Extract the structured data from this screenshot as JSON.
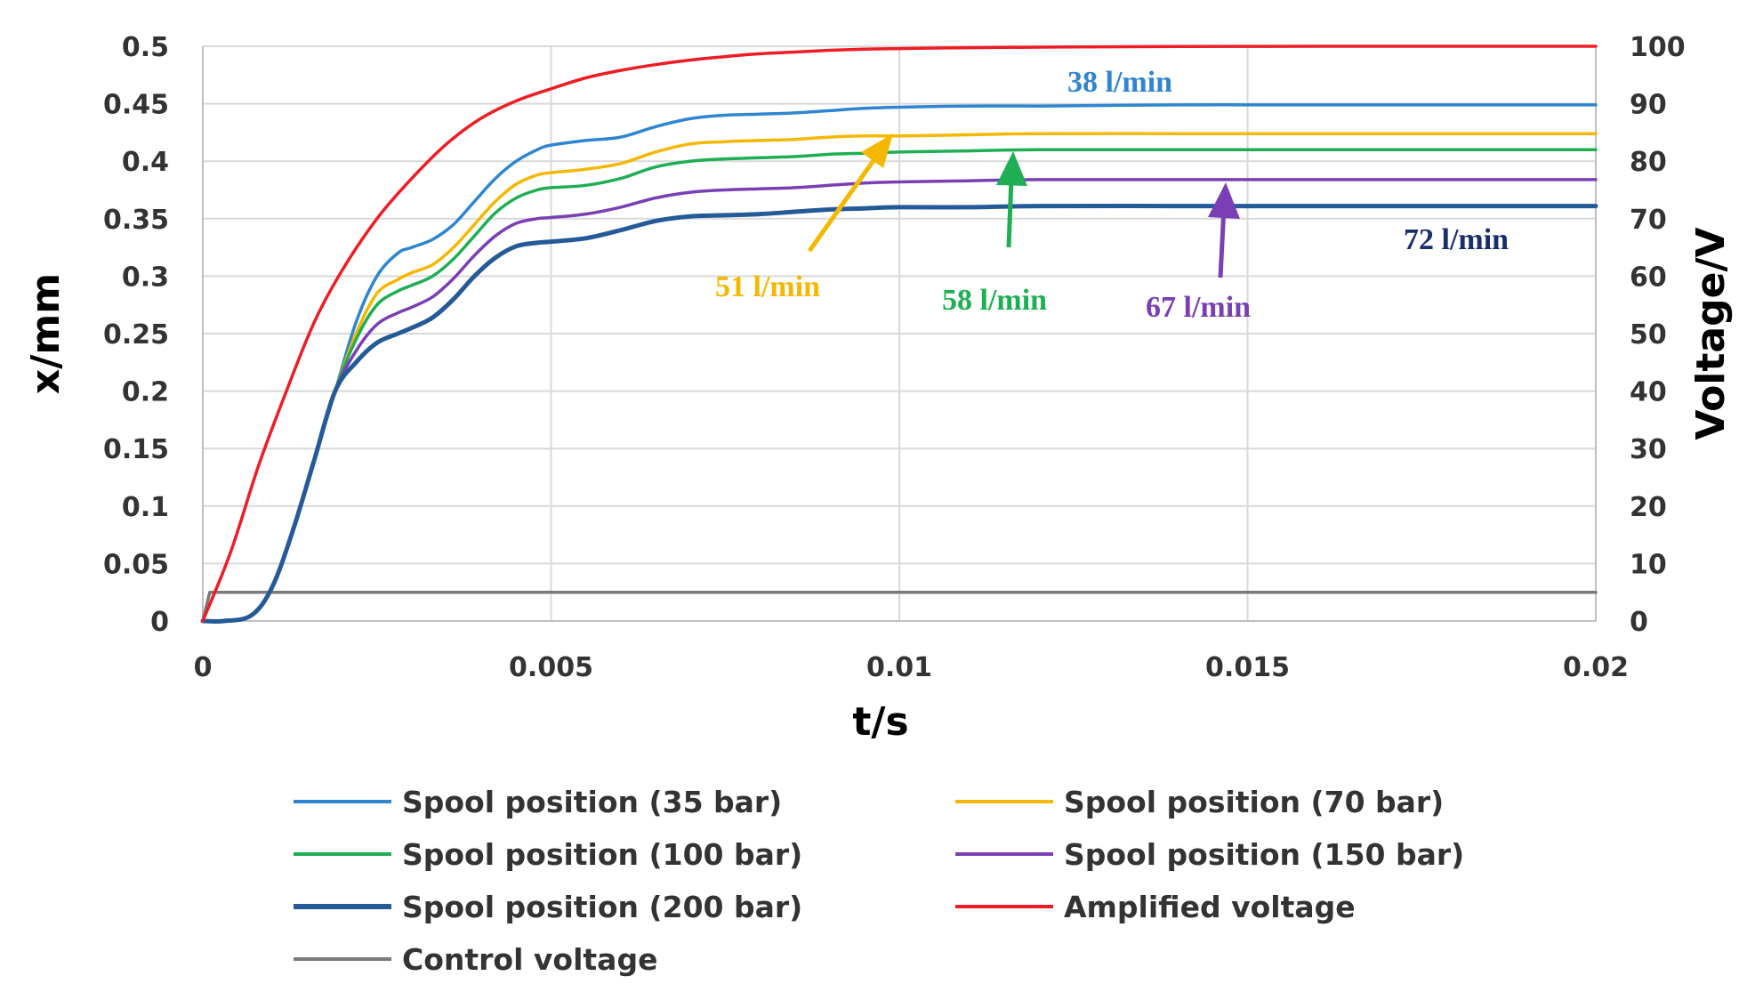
{
  "chart_data": {
    "type": "line",
    "title": "",
    "xlabel": "t/s",
    "ylabel": "x/mm",
    "y2label": "Voltage/V",
    "xlim": [
      0,
      0.02
    ],
    "ylim": [
      0,
      0.5
    ],
    "y2lim": [
      0,
      100
    ],
    "x_ticks": [
      "0",
      "0.005",
      "0.01",
      "0.015",
      "0.02"
    ],
    "y_ticks": [
      "0",
      "0.05",
      "0.1",
      "0.15",
      "0.2",
      "0.25",
      "0.3",
      "0.35",
      "0.4",
      "0.45",
      "0.5"
    ],
    "y2_ticks": [
      "0",
      "10",
      "20",
      "30",
      "40",
      "50",
      "60",
      "70",
      "80",
      "90",
      "100"
    ],
    "grid": "on",
    "legend_position": "bottom",
    "series": [
      {
        "name": "Spool position (35 bar)",
        "color": "#2e86d0",
        "axis": "left",
        "stroke": "normal",
        "x": [
          0,
          0.0003,
          0.0007,
          0.001,
          0.0013,
          0.0016,
          0.0019,
          0.0022,
          0.0025,
          0.0028,
          0.003,
          0.0033,
          0.0036,
          0.0039,
          0.0042,
          0.0045,
          0.0048,
          0.005,
          0.0055,
          0.006,
          0.0065,
          0.007,
          0.0075,
          0.008,
          0.0085,
          0.009,
          0.0095,
          0.01,
          0.011,
          0.012,
          0.014,
          0.016,
          0.018,
          0.02
        ],
        "y": [
          0,
          0,
          0.005,
          0.03,
          0.08,
          0.14,
          0.2,
          0.26,
          0.3,
          0.32,
          0.325,
          0.332,
          0.345,
          0.365,
          0.385,
          0.4,
          0.41,
          0.414,
          0.418,
          0.421,
          0.43,
          0.437,
          0.44,
          0.441,
          0.442,
          0.444,
          0.446,
          0.447,
          0.448,
          0.448,
          0.449,
          0.449,
          0.449,
          0.449
        ]
      },
      {
        "name": "Spool position (70 bar)",
        "color": "#f5b800",
        "axis": "left",
        "stroke": "normal",
        "x": [
          0,
          0.0003,
          0.0007,
          0.001,
          0.0013,
          0.0016,
          0.0019,
          0.0022,
          0.0025,
          0.0028,
          0.003,
          0.0033,
          0.0036,
          0.0039,
          0.0042,
          0.0045,
          0.0048,
          0.005,
          0.0055,
          0.006,
          0.0065,
          0.007,
          0.0075,
          0.008,
          0.0085,
          0.009,
          0.0095,
          0.01,
          0.011,
          0.012,
          0.014,
          0.016,
          0.018,
          0.02
        ],
        "y": [
          0,
          0,
          0.005,
          0.03,
          0.08,
          0.14,
          0.2,
          0.25,
          0.285,
          0.297,
          0.303,
          0.31,
          0.325,
          0.345,
          0.365,
          0.38,
          0.388,
          0.39,
          0.393,
          0.398,
          0.408,
          0.415,
          0.417,
          0.418,
          0.419,
          0.421,
          0.422,
          0.422,
          0.423,
          0.424,
          0.424,
          0.424,
          0.424,
          0.424
        ]
      },
      {
        "name": "Spool position (100 bar)",
        "color": "#1fae53",
        "axis": "left",
        "stroke": "normal",
        "x": [
          0,
          0.0003,
          0.0007,
          0.001,
          0.0013,
          0.0016,
          0.0019,
          0.0022,
          0.0025,
          0.0028,
          0.003,
          0.0033,
          0.0036,
          0.0039,
          0.0042,
          0.0045,
          0.0048,
          0.005,
          0.0055,
          0.006,
          0.0065,
          0.007,
          0.0075,
          0.008,
          0.0085,
          0.009,
          0.0095,
          0.01,
          0.011,
          0.012,
          0.014,
          0.016,
          0.018,
          0.02
        ],
        "y": [
          0,
          0,
          0.005,
          0.03,
          0.08,
          0.14,
          0.2,
          0.245,
          0.275,
          0.287,
          0.292,
          0.3,
          0.315,
          0.335,
          0.355,
          0.368,
          0.375,
          0.377,
          0.379,
          0.385,
          0.395,
          0.4,
          0.402,
          0.403,
          0.404,
          0.406,
          0.407,
          0.408,
          0.409,
          0.41,
          0.41,
          0.41,
          0.41,
          0.41
        ]
      },
      {
        "name": "Spool position (150 bar)",
        "color": "#7b3fb5",
        "axis": "left",
        "stroke": "normal",
        "x": [
          0,
          0.0003,
          0.0007,
          0.001,
          0.0013,
          0.0016,
          0.0019,
          0.0022,
          0.0025,
          0.0028,
          0.003,
          0.0033,
          0.0036,
          0.0039,
          0.0042,
          0.0045,
          0.0048,
          0.005,
          0.0055,
          0.006,
          0.0065,
          0.007,
          0.0075,
          0.008,
          0.0085,
          0.009,
          0.0095,
          0.01,
          0.011,
          0.012,
          0.014,
          0.016,
          0.018,
          0.02
        ],
        "y": [
          0,
          0,
          0.005,
          0.03,
          0.08,
          0.14,
          0.2,
          0.235,
          0.258,
          0.268,
          0.273,
          0.282,
          0.298,
          0.318,
          0.335,
          0.346,
          0.35,
          0.351,
          0.354,
          0.36,
          0.368,
          0.373,
          0.375,
          0.376,
          0.377,
          0.379,
          0.381,
          0.382,
          0.383,
          0.384,
          0.384,
          0.384,
          0.384,
          0.384
        ]
      },
      {
        "name": "Spool position (200 bar)",
        "color": "#245a97",
        "axis": "left",
        "stroke": "bold",
        "x": [
          0,
          0.0003,
          0.0007,
          0.001,
          0.0013,
          0.0016,
          0.0019,
          0.0022,
          0.0025,
          0.0028,
          0.003,
          0.0033,
          0.0036,
          0.0039,
          0.0042,
          0.0045,
          0.0048,
          0.005,
          0.0055,
          0.006,
          0.0065,
          0.007,
          0.0075,
          0.008,
          0.0085,
          0.009,
          0.0095,
          0.01,
          0.011,
          0.012,
          0.014,
          0.016,
          0.018,
          0.02
        ],
        "y": [
          0,
          0,
          0.005,
          0.03,
          0.08,
          0.14,
          0.2,
          0.225,
          0.242,
          0.25,
          0.255,
          0.264,
          0.28,
          0.3,
          0.316,
          0.326,
          0.329,
          0.33,
          0.333,
          0.34,
          0.348,
          0.352,
          0.353,
          0.354,
          0.356,
          0.358,
          0.359,
          0.36,
          0.36,
          0.361,
          0.361,
          0.361,
          0.361,
          0.361
        ]
      },
      {
        "name": "Amplified voltage",
        "color": "#ee1c24",
        "axis": "right",
        "stroke": "normal",
        "x": [
          0,
          0.0004,
          0.0008,
          0.0012,
          0.0016,
          0.002,
          0.0025,
          0.003,
          0.0035,
          0.004,
          0.0045,
          0.005,
          0.0055,
          0.006,
          0.0065,
          0.007,
          0.0075,
          0.008,
          0.0085,
          0.009,
          0.0095,
          0.01,
          0.011,
          0.012,
          0.013,
          0.014,
          0.016,
          0.018,
          0.02
        ],
        "y": [
          0,
          12,
          27,
          40,
          52,
          61,
          70,
          77,
          83,
          87.5,
          90.5,
          92.6,
          94.5,
          95.8,
          96.8,
          97.6,
          98.2,
          98.7,
          99.0,
          99.3,
          99.5,
          99.6,
          99.75,
          99.85,
          99.9,
          99.95,
          100,
          100,
          100
        ]
      },
      {
        "name": "Control voltage",
        "color": "#7a7a7a",
        "axis": "right",
        "stroke": "normal",
        "x": [
          0,
          0.0001,
          0.02
        ],
        "y": [
          0,
          5,
          5
        ]
      }
    ],
    "annotations": [
      {
        "text": "38 l/min",
        "color": "#2e86d0",
        "arrow": false
      },
      {
        "text": "51 l/min",
        "color": "#f5b800",
        "arrow": true
      },
      {
        "text": "58 l/min",
        "color": "#1fae53",
        "arrow": true
      },
      {
        "text": "67 l/min",
        "color": "#7b3fb5",
        "arrow": true
      },
      {
        "text": "72 l/min",
        "color": "#1a2e6e",
        "arrow": false
      }
    ]
  }
}
